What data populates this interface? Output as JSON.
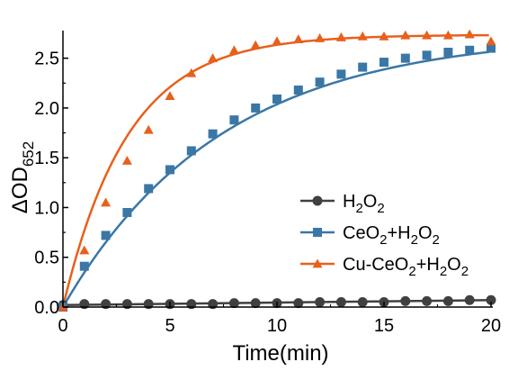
{
  "chart_data": {
    "type": "line",
    "xlabel": "Time(min)",
    "ylabel": {
      "prefix": "ΔOD",
      "subscript": "652"
    },
    "xlim": [
      0,
      20
    ],
    "ylim": [
      0,
      2.75
    ],
    "xticks": [
      0,
      5,
      10,
      15,
      20
    ],
    "xtick_labels": [
      "0",
      "5",
      "10",
      "15",
      "20"
    ],
    "yticks": [
      0.0,
      0.5,
      1.0,
      1.5,
      2.0,
      2.5
    ],
    "ytick_labels": [
      "0.0",
      "0.5",
      "1.0",
      "1.5",
      "2.0",
      "2.5"
    ],
    "grid": false,
    "legend_position": "center-right",
    "x": [
      0,
      1,
      2,
      3,
      4,
      5,
      6,
      7,
      8,
      9,
      10,
      11,
      12,
      13,
      14,
      15,
      16,
      17,
      18,
      19,
      20
    ],
    "series": [
      {
        "legend": [
          {
            "t": "H",
            "sub": false
          },
          {
            "t": "2",
            "sub": true
          },
          {
            "t": "O",
            "sub": false
          },
          {
            "t": "2",
            "sub": true
          }
        ],
        "marker": "circle",
        "color": "#404040",
        "values": [
          0.02,
          0.03,
          0.03,
          0.03,
          0.03,
          0.03,
          0.03,
          0.03,
          0.04,
          0.04,
          0.04,
          0.04,
          0.05,
          0.05,
          0.05,
          0.05,
          0.06,
          0.06,
          0.06,
          0.07,
          0.07
        ],
        "fit": [
          0.02,
          0.07
        ]
      },
      {
        "legend": [
          {
            "t": "CeO",
            "sub": false
          },
          {
            "t": "2",
            "sub": true
          },
          {
            "t": "+H",
            "sub": false
          },
          {
            "t": "2",
            "sub": true
          },
          {
            "t": "O",
            "sub": false
          },
          {
            "t": "2",
            "sub": true
          }
        ],
        "marker": "square",
        "color": "#3a77a6",
        "values": [
          0.0,
          0.41,
          0.72,
          0.95,
          1.19,
          1.38,
          1.57,
          1.74,
          1.88,
          2.0,
          2.09,
          2.18,
          2.26,
          2.34,
          2.41,
          2.46,
          2.5,
          2.53,
          2.56,
          2.58,
          2.6
        ],
        "fit": {
          "plateau": 2.75,
          "k": 0.135
        }
      },
      {
        "legend": [
          {
            "t": "Cu-CeO",
            "sub": false
          },
          {
            "t": "2",
            "sub": true
          },
          {
            "t": "+H",
            "sub": false
          },
          {
            "t": "2",
            "sub": true
          },
          {
            "t": "O",
            "sub": false
          },
          {
            "t": "2",
            "sub": true
          }
        ],
        "marker": "triangle",
        "color": "#e8601c",
        "values": [
          0.0,
          0.57,
          1.05,
          1.47,
          1.78,
          2.12,
          2.35,
          2.5,
          2.58,
          2.63,
          2.67,
          2.69,
          2.7,
          2.71,
          2.72,
          2.72,
          2.73,
          2.73,
          2.73,
          2.74,
          2.67
        ],
        "fit": {
          "plateau": 2.735,
          "k": 0.33
        }
      }
    ]
  }
}
